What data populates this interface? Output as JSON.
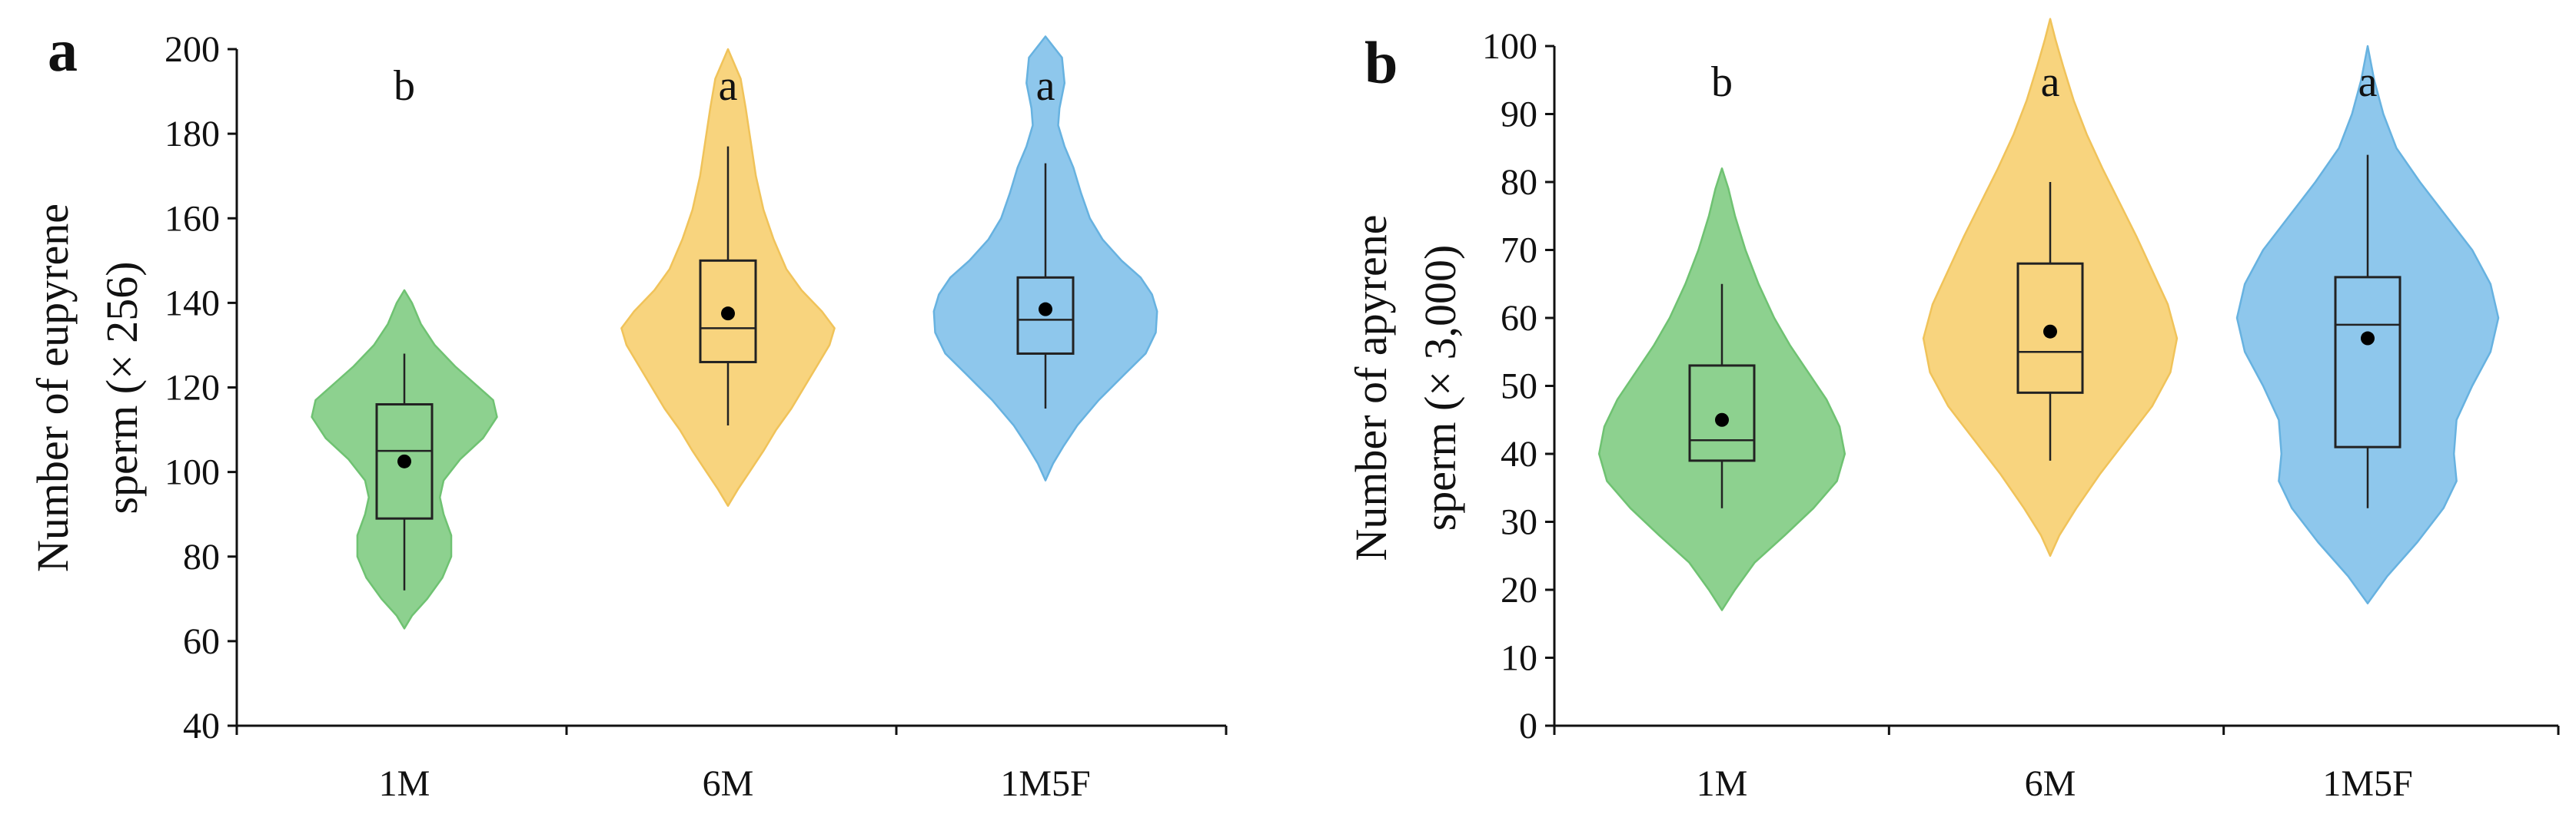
{
  "figure": {
    "panels": [
      "a",
      "b"
    ]
  },
  "chart_data": [
    {
      "panel_label": "a",
      "type": "violin",
      "title": "",
      "xlabel": "",
      "ylabel_line1": "Number of eupyrene",
      "ylabel_line2": "sperm (× 256)",
      "ylim": [
        40,
        200
      ],
      "yticks": [
        40,
        60,
        80,
        100,
        120,
        140,
        160,
        180,
        200
      ],
      "grid": false,
      "categories": [
        "1M",
        "6M",
        "1M5F"
      ],
      "series": [
        {
          "name": "1M",
          "color": "#8dd18f",
          "edge": "#6fc272",
          "box": {
            "whisker_low": 72,
            "q1": 89,
            "median": 105,
            "q3": 116,
            "whisker_high": 128
          },
          "mean": 102.5,
          "significance": "b",
          "density": [
            [
              63,
              0.0
            ],
            [
              66,
              0.06
            ],
            [
              70,
              0.18
            ],
            [
              75,
              0.3
            ],
            [
              80,
              0.37
            ],
            [
              85,
              0.37
            ],
            [
              90,
              0.31
            ],
            [
              94,
              0.28
            ],
            [
              98,
              0.31
            ],
            [
              103,
              0.44
            ],
            [
              108,
              0.62
            ],
            [
              113,
              0.73
            ],
            [
              117,
              0.7
            ],
            [
              121,
              0.55
            ],
            [
              125,
              0.4
            ],
            [
              130,
              0.24
            ],
            [
              135,
              0.13
            ],
            [
              140,
              0.06
            ],
            [
              143,
              0.0
            ]
          ]
        },
        {
          "name": "6M",
          "color": "#f8d47e",
          "edge": "#f0c35a",
          "box": {
            "whisker_low": 111,
            "q1": 126,
            "median": 134,
            "q3": 150,
            "whisker_high": 177
          },
          "mean": 137.5,
          "significance": "a",
          "density": [
            [
              92,
              0.0
            ],
            [
              96,
              0.08
            ],
            [
              100,
              0.17
            ],
            [
              105,
              0.28
            ],
            [
              110,
              0.38
            ],
            [
              115,
              0.5
            ],
            [
              120,
              0.6
            ],
            [
              125,
              0.7
            ],
            [
              130,
              0.8
            ],
            [
              134,
              0.84
            ],
            [
              138,
              0.74
            ],
            [
              143,
              0.58
            ],
            [
              148,
              0.46
            ],
            [
              155,
              0.36
            ],
            [
              162,
              0.28
            ],
            [
              170,
              0.22
            ],
            [
              178,
              0.18
            ],
            [
              186,
              0.14
            ],
            [
              193,
              0.1
            ],
            [
              200,
              0.0
            ]
          ]
        },
        {
          "name": "1M5F",
          "color": "#8ec7ec",
          "edge": "#67b2e0",
          "box": {
            "whisker_low": 115,
            "q1": 128,
            "median": 136,
            "q3": 146,
            "whisker_high": 173
          },
          "mean": 138.5,
          "significance": "a",
          "density": [
            [
              98,
              0.0
            ],
            [
              102,
              0.06
            ],
            [
              106,
              0.14
            ],
            [
              111,
              0.25
            ],
            [
              117,
              0.42
            ],
            [
              123,
              0.62
            ],
            [
              128,
              0.79
            ],
            [
              133,
              0.87
            ],
            [
              138,
              0.88
            ],
            [
              142,
              0.84
            ],
            [
              146,
              0.75
            ],
            [
              150,
              0.6
            ],
            [
              155,
              0.45
            ],
            [
              160,
              0.35
            ],
            [
              166,
              0.28
            ],
            [
              172,
              0.22
            ],
            [
              177,
              0.15
            ],
            [
              182,
              0.1
            ],
            [
              186,
              0.11
            ],
            [
              192,
              0.15
            ],
            [
              198,
              0.13
            ],
            [
              203,
              0.0
            ]
          ]
        }
      ]
    },
    {
      "panel_label": "b",
      "type": "violin",
      "title": "",
      "xlabel": "",
      "ylabel_line1": "Number of apyrene",
      "ylabel_line2": "sperm (× 3,000)",
      "ylim": [
        0,
        100
      ],
      "yticks": [
        0,
        10,
        20,
        30,
        40,
        50,
        60,
        70,
        80,
        90,
        100
      ],
      "grid": false,
      "categories": [
        "1M",
        "6M",
        "1M5F"
      ],
      "series": [
        {
          "name": "1M",
          "color": "#8dd18f",
          "edge": "#6fc272",
          "box": {
            "whisker_low": 32,
            "q1": 39,
            "median": 42,
            "q3": 53,
            "whisker_high": 65
          },
          "mean": 45,
          "significance": "b",
          "density": [
            [
              17,
              0.0
            ],
            [
              20,
              0.1
            ],
            [
              24,
              0.25
            ],
            [
              28,
              0.48
            ],
            [
              32,
              0.7
            ],
            [
              36,
              0.88
            ],
            [
              40,
              0.94
            ],
            [
              44,
              0.9
            ],
            [
              48,
              0.8
            ],
            [
              52,
              0.66
            ],
            [
              56,
              0.52
            ],
            [
              60,
              0.4
            ],
            [
              65,
              0.28
            ],
            [
              70,
              0.18
            ],
            [
              75,
              0.1
            ],
            [
              79,
              0.05
            ],
            [
              82,
              0.0
            ]
          ]
        },
        {
          "name": "6M",
          "color": "#f8d47e",
          "edge": "#f0c35a",
          "box": {
            "whisker_low": 39,
            "q1": 49,
            "median": 55,
            "q3": 68,
            "whisker_high": 80
          },
          "mean": 58,
          "significance": "a",
          "density": [
            [
              25,
              0.0
            ],
            [
              28,
              0.07
            ],
            [
              32,
              0.2
            ],
            [
              37,
              0.38
            ],
            [
              42,
              0.58
            ],
            [
              47,
              0.78
            ],
            [
              52,
              0.92
            ],
            [
              57,
              0.97
            ],
            [
              62,
              0.9
            ],
            [
              67,
              0.78
            ],
            [
              72,
              0.66
            ],
            [
              77,
              0.53
            ],
            [
              82,
              0.4
            ],
            [
              87,
              0.28
            ],
            [
              92,
              0.18
            ],
            [
              97,
              0.1
            ],
            [
              101,
              0.04
            ],
            [
              104,
              0.0
            ]
          ]
        },
        {
          "name": "1M5F",
          "color": "#8ec7ec",
          "edge": "#67b2e0",
          "box": {
            "whisker_low": 32,
            "q1": 41,
            "median": 59,
            "q3": 66,
            "whisker_high": 84
          },
          "mean": 57,
          "significance": "a",
          "density": [
            [
              18,
              0.0
            ],
            [
              22,
              0.15
            ],
            [
              27,
              0.38
            ],
            [
              32,
              0.58
            ],
            [
              36,
              0.68
            ],
            [
              40,
              0.66
            ],
            [
              45,
              0.68
            ],
            [
              50,
              0.8
            ],
            [
              55,
              0.94
            ],
            [
              60,
              1.0
            ],
            [
              65,
              0.94
            ],
            [
              70,
              0.8
            ],
            [
              75,
              0.6
            ],
            [
              80,
              0.4
            ],
            [
              85,
              0.22
            ],
            [
              90,
              0.12
            ],
            [
              95,
              0.05
            ],
            [
              100,
              0.0
            ]
          ]
        }
      ]
    }
  ]
}
